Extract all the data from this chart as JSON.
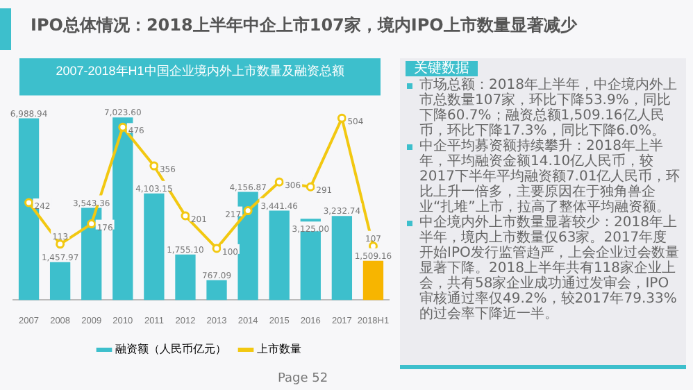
{
  "chart_data": {
    "type": "bar",
    "title": "IPO总体情况：2018上半年中企上市107家，境内IPO上市数量显著减少",
    "subtitle": "2007-2018年H1中国企业境内外上市数量及融资总额",
    "categories": [
      "2007",
      "2008",
      "2009",
      "2010",
      "2011",
      "2012",
      "2013",
      "2014",
      "2015",
      "2016",
      "2017",
      "2018H1"
    ],
    "series": [
      {
        "name": "融资额（人民币亿元）",
        "color": "#3dbfcc",
        "colors": [
          "#3dbfcc",
          "#3dbfcc",
          "#3dbfcc",
          "#3dbfcc",
          "#3dbfcc",
          "#3dbfcc",
          "#3dbfcc",
          "#3dbfcc",
          "#3dbfcc",
          "#3dbfcc",
          "#3dbfcc",
          "#f7b500"
        ],
        "values": [
          6988.94,
          1457.97,
          3543.36,
          7023.6,
          4103.15,
          1755.1,
          767.09,
          4156.87,
          3441.46,
          3125.0,
          3232.74,
          1509.16
        ],
        "value_labels": [
          "6,988.94",
          "1,457.97",
          "3,543.36",
          "7,023.60",
          "4,103.15",
          "1,755.10",
          "767.09",
          "4,156.87",
          "3,441.46",
          "3,125.00",
          "3,232.74",
          "1,509.16"
        ]
      },
      {
        "name": "上市数量",
        "type": "line",
        "axis": "y2",
        "color": "#f2c811",
        "values": [
          242,
          113,
          176,
          476,
          356,
          201,
          100,
          217,
          306,
          291,
          504,
          107
        ],
        "value_labels": [
          "242",
          "113",
          "176",
          "476",
          "356",
          "201",
          "100",
          "217",
          "306",
          "291",
          "504",
          "107"
        ]
      }
    ],
    "marker": "circle",
    "legend": "bottom",
    "grid": false,
    "tick_labels": "x",
    "annotations": [
      "关键数据",
      "市场总额：2018年上半年，中企境内外上市总数量107家，环比下降53.9%，同比下降60.7%；融资总额1,509.16亿人民币，环比下降17.3%，同比下降6.0%。",
      "中企平均募资额持续攀升：2018年上半年，平均融资金额14.10亿人民币，较2017下半年平均融资额7.01亿人民币，环比上升一倍多，主要原因在于独角兽企业“扎堆”上市，拉高了整体平均融资额。",
      "中企境内外上市数量显著较少：2018年上半年，境内上市数量仅63家。2017年度开始IPO发行监管趋严，上会企业过会数量显著下降。2018上半年共有118家企业上会，共有58家企业成功通过发审会，IPO审核通过率仅49.2%，较2017年79.33%的过会率下降近一半。",
      "Page 52"
    ]
  }
}
